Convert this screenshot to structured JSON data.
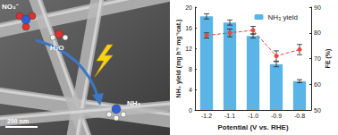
{
  "chart_data": {
    "type": "bar",
    "categories": [
      "-1.2",
      "-1.1",
      "-1.0",
      "-0.9",
      "-0.8"
    ],
    "x_label": "Potential (V vs. RHE)",
    "y_label": "NH₃ yield (mg h⁻¹ mg⁻¹cat.)",
    "y2_label": "FE (%)",
    "ylim": [
      0,
      20
    ],
    "yticks": [
      0,
      4,
      8,
      12,
      16,
      20
    ],
    "y2lim": [
      50,
      90
    ],
    "y2ticks": [
      50,
      60,
      70,
      80,
      90
    ],
    "legend": "upper right",
    "series": [
      {
        "name": "NH₃ yield",
        "type": "bar",
        "color": "#5ab4e5",
        "values": [
          18.2,
          17.0,
          14.4,
          8.9,
          5.6
        ],
        "errors": [
          0.5,
          0.5,
          0.4,
          0.5,
          0.3
        ]
      },
      {
        "type": "line",
        "axis": "y2",
        "color": "#e8483f",
        "marker": "circle",
        "line_style": "dashed",
        "values": [
          79.0,
          80.0,
          81.0,
          71.0,
          73.5
        ],
        "errors": [
          1.0,
          1.5,
          1.5,
          2.0,
          2.0
        ]
      }
    ]
  },
  "image": {
    "labels": {
      "nitrate": "NO₃⁻",
      "water": "H₂O",
      "ammonia": "NH₃"
    },
    "scale_bar": "200 nm"
  }
}
